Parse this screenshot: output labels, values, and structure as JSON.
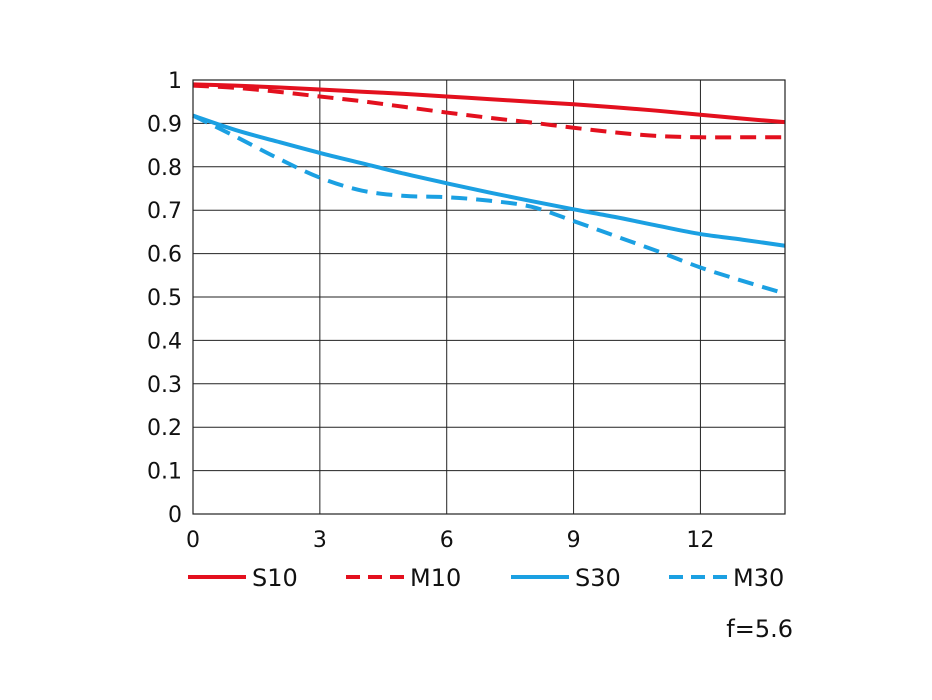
{
  "chart_data": {
    "type": "line",
    "xlim": [
      0,
      14
    ],
    "ylim": [
      0,
      1
    ],
    "x_ticks": [
      "0",
      "3",
      "6",
      "9",
      "12"
    ],
    "y_ticks": [
      "0",
      "0.1",
      "0.2",
      "0.3",
      "0.4",
      "0.5",
      "0.6",
      "0.7",
      "0.8",
      "0.9",
      "1"
    ],
    "grid": true,
    "legend_position": "bottom",
    "note": "f=5.6",
    "series": [
      {
        "name": "S10",
        "color": "#e3101e",
        "style": "solid",
        "x": [
          0,
          1,
          2,
          3,
          4,
          5,
          6,
          7,
          8,
          9,
          10,
          11,
          12,
          13,
          14
        ],
        "y": [
          0.99,
          0.987,
          0.983,
          0.978,
          0.973,
          0.968,
          0.962,
          0.956,
          0.95,
          0.944,
          0.937,
          0.929,
          0.92,
          0.911,
          0.903
        ]
      },
      {
        "name": "M10",
        "color": "#e3101e",
        "style": "dashed",
        "x": [
          0,
          1,
          2,
          3,
          4,
          5,
          6,
          7,
          8,
          9,
          10,
          11,
          12,
          13,
          14
        ],
        "y": [
          0.987,
          0.982,
          0.973,
          0.962,
          0.951,
          0.938,
          0.925,
          0.913,
          0.902,
          0.89,
          0.879,
          0.871,
          0.868,
          0.868,
          0.868
        ]
      },
      {
        "name": "S30",
        "color": "#1ba0e2",
        "style": "solid",
        "x": [
          0,
          1,
          2,
          3,
          4,
          5,
          6,
          7,
          8,
          9,
          10,
          11,
          12,
          13,
          14
        ],
        "y": [
          0.918,
          0.885,
          0.858,
          0.832,
          0.808,
          0.784,
          0.762,
          0.741,
          0.721,
          0.702,
          0.684,
          0.664,
          0.645,
          0.632,
          0.618
        ]
      },
      {
        "name": "M30",
        "color": "#1ba0e2",
        "style": "dashed",
        "x": [
          0,
          1,
          2,
          3,
          4,
          5,
          6,
          7,
          8,
          9,
          10,
          11,
          12,
          13,
          14
        ],
        "y": [
          0.918,
          0.87,
          0.82,
          0.775,
          0.745,
          0.733,
          0.73,
          0.722,
          0.708,
          0.675,
          0.64,
          0.605,
          0.568,
          0.537,
          0.508
        ]
      }
    ]
  }
}
